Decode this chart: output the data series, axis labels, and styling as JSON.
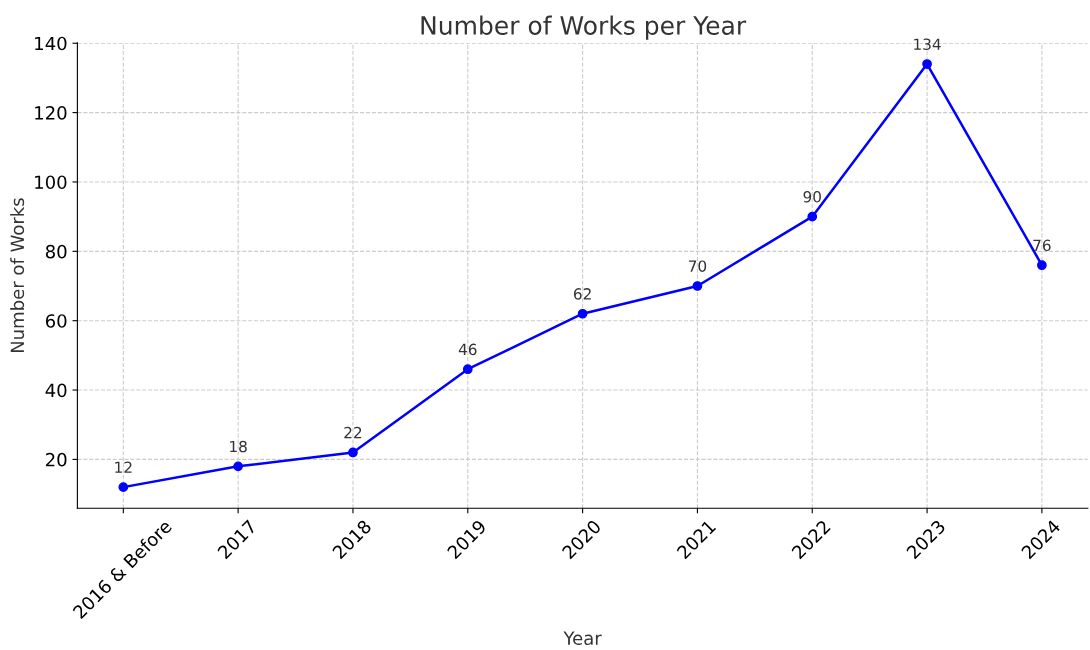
{
  "chart_data": {
    "type": "line",
    "title": "Number of Works per Year",
    "xlabel": "Year",
    "ylabel": "Number of Works",
    "categories": [
      "2016 & Before",
      "2017",
      "2018",
      "2019",
      "2020",
      "2021",
      "2022",
      "2023",
      "2024"
    ],
    "series": [
      {
        "color": "#0000ff",
        "values": [
          12,
          18,
          22,
          46,
          62,
          70,
          90,
          134,
          76
        ]
      }
    ],
    "ylim": [
      5.9,
      140.1
    ],
    "yticks": [
      20,
      40,
      60,
      80,
      100,
      120,
      140
    ],
    "grid": true,
    "marker": "circle",
    "line_style": "solid",
    "data_labels": true
  }
}
